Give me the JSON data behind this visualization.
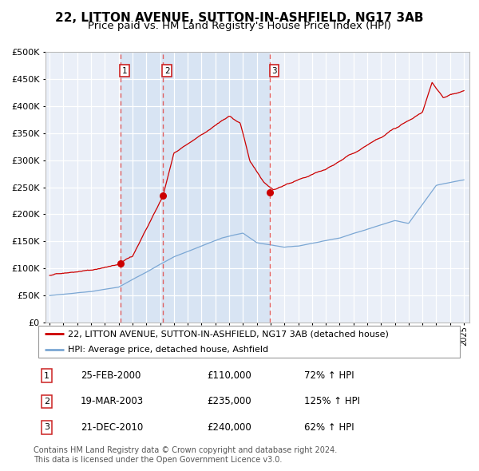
{
  "title": "22, LITTON AVENUE, SUTTON-IN-ASHFIELD, NG17 3AB",
  "subtitle": "Price paid vs. HM Land Registry's House Price Index (HPI)",
  "legend_line1": "22, LITTON AVENUE, SUTTON-IN-ASHFIELD, NG17 3AB (detached house)",
  "legend_line2": "HPI: Average price, detached house, Ashfield",
  "footer1": "Contains HM Land Registry data © Crown copyright and database right 2024.",
  "footer2": "This data is licensed under the Open Government Licence v3.0.",
  "transactions": [
    {
      "num": 1,
      "date": "25-FEB-2000",
      "price": "£110,000",
      "pct": "72% ↑ HPI",
      "x_year": 2000.15
    },
    {
      "num": 2,
      "date": "19-MAR-2003",
      "price": "£235,000",
      "pct": "125% ↑ HPI",
      "x_year": 2003.22
    },
    {
      "num": 3,
      "date": "21-DEC-2010",
      "price": "£240,000",
      "pct": "62% ↑ HPI",
      "x_year": 2010.97
    }
  ],
  "ylim": [
    0,
    500000
  ],
  "xlim_start": 1994.7,
  "xlim_end": 2025.4,
  "plot_bg_color": "#eaeff8",
  "grid_color": "#ffffff",
  "red_line_color": "#cc0000",
  "blue_line_color": "#7ba7d4",
  "dashed_color": "#e06060",
  "shade_color": "#d8e4f3",
  "title_fontsize": 11,
  "subtitle_fontsize": 9.5,
  "legend_fontsize": 8,
  "table_fontsize": 8.5,
  "footer_fontsize": 7,
  "ytick_fontsize": 8,
  "xtick_fontsize": 7
}
